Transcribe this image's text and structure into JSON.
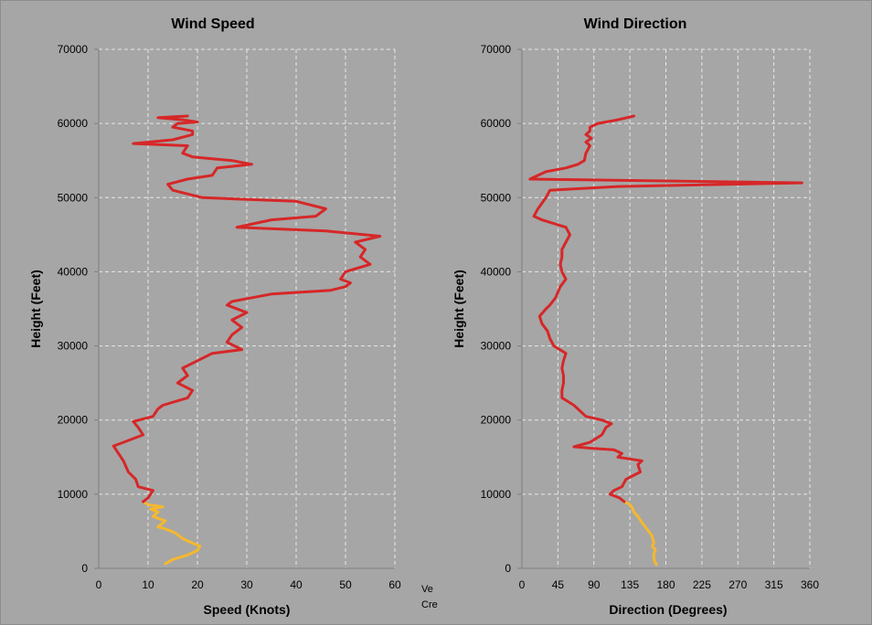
{
  "colors": {
    "upper": "#d62728",
    "lower": "#f5b82e",
    "background": "#a6a6a6",
    "grid": "#e8e8e8"
  },
  "stray_text": [
    "Ve",
    "Cre"
  ],
  "chart_data": [
    {
      "type": "line",
      "title": "Wind Speed",
      "xlabel": "Speed (Knots)",
      "ylabel": "Height (Feet)",
      "xlim": [
        0,
        60
      ],
      "ylim": [
        0,
        70000
      ],
      "xticks": [
        0,
        10,
        20,
        30,
        40,
        50,
        60
      ],
      "yticks": [
        0,
        10000,
        20000,
        30000,
        40000,
        50000,
        60000,
        70000
      ],
      "grid": true,
      "legend": "none",
      "series": [
        {
          "color": "#f5b82e",
          "points": [
            [
              13.5,
              600
            ],
            [
              15,
              1200
            ],
            [
              18,
              1800
            ],
            [
              20,
              2400
            ],
            [
              20.5,
              3000
            ],
            [
              19,
              3400
            ],
            [
              17,
              4000
            ],
            [
              15.5,
              4800
            ],
            [
              14,
              5200
            ],
            [
              12,
              5600
            ],
            [
              13.5,
              6400
            ],
            [
              11,
              7000
            ],
            [
              12,
              7600
            ],
            [
              10.5,
              8000
            ],
            [
              13,
              8300
            ],
            [
              10,
              8600
            ],
            [
              9,
              9000
            ]
          ]
        },
        {
          "color": "#d62728",
          "points": [
            [
              9,
              9000
            ],
            [
              10,
              9500
            ],
            [
              11,
              10500
            ],
            [
              8,
              11000
            ],
            [
              7.5,
              12000
            ],
            [
              6,
              13000
            ],
            [
              5,
              14500
            ],
            [
              3,
              16500
            ],
            [
              5,
              17000
            ],
            [
              7,
              17500
            ],
            [
              9,
              18000
            ],
            [
              8,
              19000
            ],
            [
              7,
              19800
            ],
            [
              11,
              20500
            ],
            [
              12,
              21500
            ],
            [
              13,
              22000
            ],
            [
              18,
              23000
            ],
            [
              19,
              24000
            ],
            [
              16,
              25000
            ],
            [
              18,
              26000
            ],
            [
              17,
              27000
            ],
            [
              20,
              28000
            ],
            [
              23,
              29000
            ],
            [
              29,
              29500
            ],
            [
              26,
              30500
            ],
            [
              27,
              31500
            ],
            [
              29,
              32500
            ],
            [
              27,
              33500
            ],
            [
              30,
              34500
            ],
            [
              26,
              35500
            ],
            [
              27,
              36000
            ],
            [
              35,
              37000
            ],
            [
              47,
              37500
            ],
            [
              50,
              38000
            ],
            [
              51,
              38500
            ],
            [
              49,
              39000
            ],
            [
              50,
              40000
            ],
            [
              55,
              41000
            ],
            [
              53,
              42000
            ],
            [
              54,
              43000
            ],
            [
              52,
              44000
            ],
            [
              57,
              44800
            ],
            [
              46,
              45500
            ],
            [
              28,
              46000
            ],
            [
              35,
              47000
            ],
            [
              44,
              47500
            ],
            [
              46,
              48500
            ],
            [
              40,
              49500
            ],
            [
              21,
              50000
            ],
            [
              15,
              51000
            ],
            [
              14,
              51800
            ],
            [
              18,
              52500
            ],
            [
              23,
              53000
            ],
            [
              24,
              54000
            ],
            [
              31,
              54500
            ],
            [
              27,
              55000
            ],
            [
              19,
              55500
            ],
            [
              17,
              56000
            ],
            [
              18,
              57000
            ],
            [
              7,
              57300
            ],
            [
              15,
              57800
            ],
            [
              19,
              58500
            ],
            [
              19,
              59000
            ],
            [
              15,
              59500
            ],
            [
              16,
              60000
            ],
            [
              20,
              60200
            ],
            [
              17,
              60500
            ],
            [
              12,
              60800
            ],
            [
              18,
              61000
            ]
          ]
        }
      ]
    },
    {
      "type": "line",
      "title": "Wind Direction",
      "xlabel": "Direction (Degrees)",
      "ylabel": "Height (Feet)",
      "xlim": [
        0,
        360
      ],
      "ylim": [
        0,
        70000
      ],
      "xticks": [
        0,
        45,
        90,
        135,
        180,
        225,
        270,
        315,
        360
      ],
      "yticks": [
        0,
        10000,
        20000,
        30000,
        40000,
        50000,
        60000,
        70000
      ],
      "grid": true,
      "legend": "none",
      "series": [
        {
          "color": "#f5b82e",
          "points": [
            [
              168,
              500
            ],
            [
              165,
              1200
            ],
            [
              165,
              2000
            ],
            [
              167,
              2500
            ],
            [
              163,
              3000
            ],
            [
              165,
              3500
            ],
            [
              162,
              4500
            ],
            [
              155,
              5500
            ],
            [
              150,
              6200
            ],
            [
              145,
              7000
            ],
            [
              140,
              7600
            ],
            [
              138,
              8200
            ],
            [
              135,
              8600
            ],
            [
              128,
              9000
            ]
          ]
        },
        {
          "color": "#d62728",
          "points": [
            [
              128,
              9000
            ],
            [
              122,
              9500
            ],
            [
              110,
              10000
            ],
            [
              115,
              10500
            ],
            [
              125,
              11000
            ],
            [
              130,
              12000
            ],
            [
              148,
              13000
            ],
            [
              145,
              14000
            ],
            [
              150,
              14500
            ],
            [
              120,
              15000
            ],
            [
              125,
              15500
            ],
            [
              115,
              16000
            ],
            [
              85,
              16200
            ],
            [
              65,
              16400
            ],
            [
              85,
              17000
            ],
            [
              100,
              18000
            ],
            [
              105,
              19000
            ],
            [
              112,
              19500
            ],
            [
              100,
              20000
            ],
            [
              80,
              20500
            ],
            [
              65,
              22000
            ],
            [
              50,
              23000
            ],
            [
              50,
              24000
            ],
            [
              52,
              25000
            ],
            [
              52,
              26000
            ],
            [
              50,
              27000
            ],
            [
              52,
              28000
            ],
            [
              55,
              29000
            ],
            [
              40,
              30000
            ],
            [
              35,
              31000
            ],
            [
              32,
              32000
            ],
            [
              25,
              33000
            ],
            [
              22,
              34000
            ],
            [
              30,
              35000
            ],
            [
              35,
              35500
            ],
            [
              42,
              36500
            ],
            [
              48,
              38000
            ],
            [
              55,
              39000
            ],
            [
              50,
              40000
            ],
            [
              48,
              41000
            ],
            [
              50,
              42000
            ],
            [
              50,
              43000
            ],
            [
              55,
              44000
            ],
            [
              60,
              45000
            ],
            [
              55,
              46000
            ],
            [
              40,
              46500
            ],
            [
              25,
              47000
            ],
            [
              15,
              47500
            ],
            [
              20,
              48500
            ],
            [
              30,
              50000
            ],
            [
              35,
              51000
            ],
            [
              120,
              51500
            ],
            [
              350,
              52000
            ],
            [
              10,
              52500
            ],
            [
              30,
              53500
            ],
            [
              55,
              54000
            ],
            [
              70,
              54500
            ],
            [
              78,
              55000
            ],
            [
              80,
              56000
            ],
            [
              85,
              57000
            ],
            [
              80,
              57500
            ],
            [
              87,
              58000
            ],
            [
              80,
              58500
            ],
            [
              85,
              59000
            ],
            [
              85,
              59500
            ],
            [
              95,
              60000
            ],
            [
              120,
              60500
            ],
            [
              140,
              61000
            ]
          ]
        }
      ]
    }
  ]
}
